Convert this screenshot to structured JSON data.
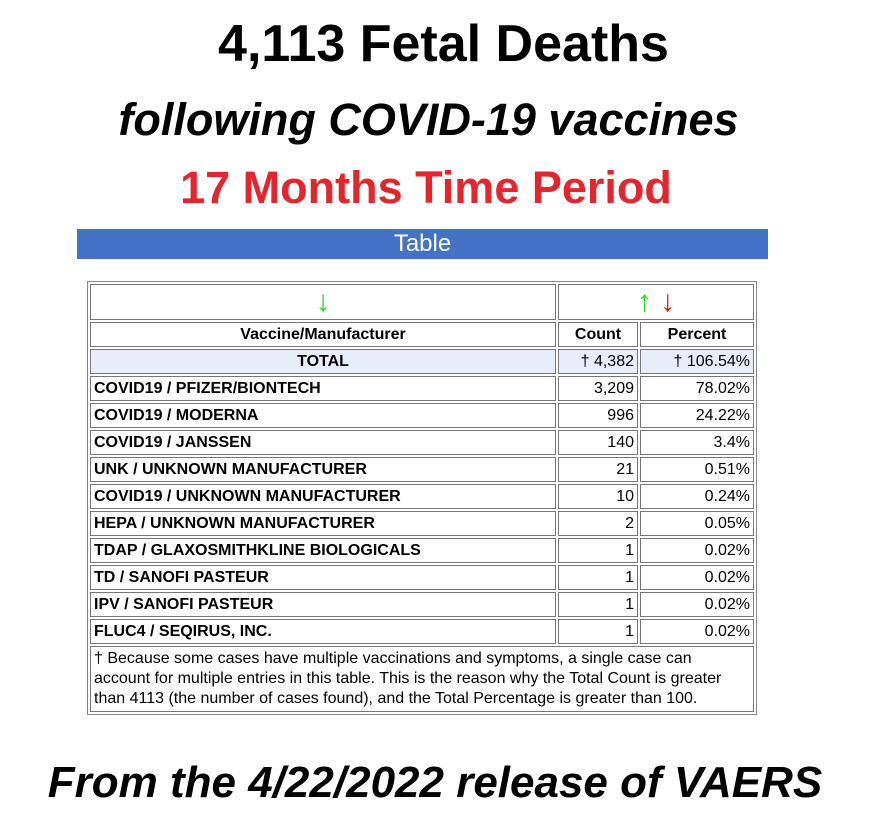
{
  "title": "4,113 Fetal Deaths",
  "subtitle": "following COVID-19 vaccines",
  "period": "17 Months Time Period",
  "table_label": "Table",
  "colors": {
    "accent_bar": "#4472c4",
    "period_text": "#e3262d",
    "total_row_bg": "#e8edfb",
    "arrow_green": "#1fe01f",
    "arrow_red": "#e01515"
  },
  "icons": {
    "sort_vaccine": "arrow-down-green",
    "sort_count_up": "arrow-up-green",
    "sort_count_down": "arrow-down-red"
  },
  "arrows": {
    "down": "↓",
    "up": "↑"
  },
  "headers": {
    "vaccine": "Vaccine/Manufacturer",
    "count": "Count",
    "percent": "Percent"
  },
  "total": {
    "label": "TOTAL",
    "count": "† 4,382",
    "percent": "† 106.54%"
  },
  "rows": [
    {
      "name": "COVID19 / PFIZER/BIONTECH",
      "count": "3,209",
      "percent": "78.02%"
    },
    {
      "name": "COVID19 / MODERNA",
      "count": "996",
      "percent": "24.22%"
    },
    {
      "name": "COVID19 / JANSSEN",
      "count": "140",
      "percent": "3.4%"
    },
    {
      "name": "UNK / UNKNOWN MANUFACTURER",
      "count": "21",
      "percent": "0.51%"
    },
    {
      "name": "COVID19 / UNKNOWN MANUFACTURER",
      "count": "10",
      "percent": "0.24%"
    },
    {
      "name": "HEPA / UNKNOWN MANUFACTURER",
      "count": "2",
      "percent": "0.05%"
    },
    {
      "name": "TDAP / GLAXOSMITHKLINE BIOLOGICALS",
      "count": "1",
      "percent": "0.02%"
    },
    {
      "name": "TD / SANOFI PASTEUR",
      "count": "1",
      "percent": "0.02%"
    },
    {
      "name": "IPV / SANOFI PASTEUR",
      "count": "1",
      "percent": "0.02%"
    },
    {
      "name": "FLUC4 / SEQIRUS, INC.",
      "count": "1",
      "percent": "0.02%"
    }
  ],
  "footnote": "† Because some cases have multiple vaccinations and symptoms, a single case can account for multiple entries in this table. This is the reason why the Total Count is greater than 4113 (the number of cases found), and the Total Percentage is greater than 100.",
  "source": "From the 4/22/2022 release of VAERS"
}
